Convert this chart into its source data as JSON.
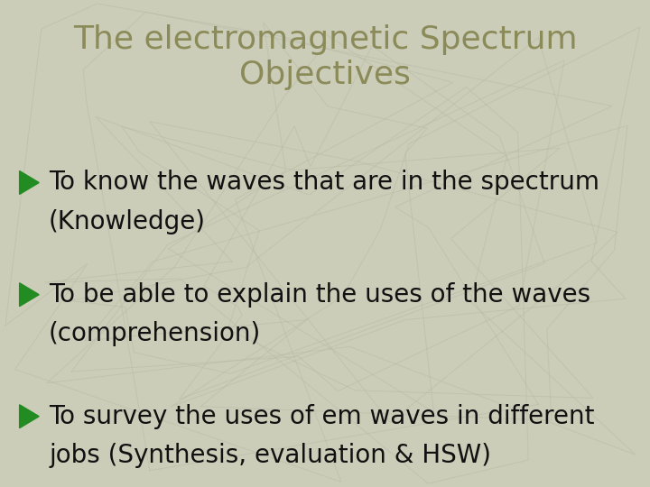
{
  "background_color": "#cccdb8",
  "title_line1": "The electromagnetic Spectrum",
  "title_line2": "Objectives",
  "title_color": "#8b8b5a",
  "bullet_color": "#228B22",
  "text_color": "#111111",
  "bullets": [
    [
      "To know the waves that are in the spectrum",
      "(Knowledge)"
    ],
    [
      "To be able to explain the uses of the waves",
      "(comprehension)"
    ],
    [
      "To survey the uses of em waves in different",
      "jobs (Synthesis, evaluation & HSW)"
    ]
  ],
  "title_fontsize": 26,
  "bullet_fontsize": 20,
  "figsize": [
    7.2,
    5.4
  ],
  "dpi": 100
}
